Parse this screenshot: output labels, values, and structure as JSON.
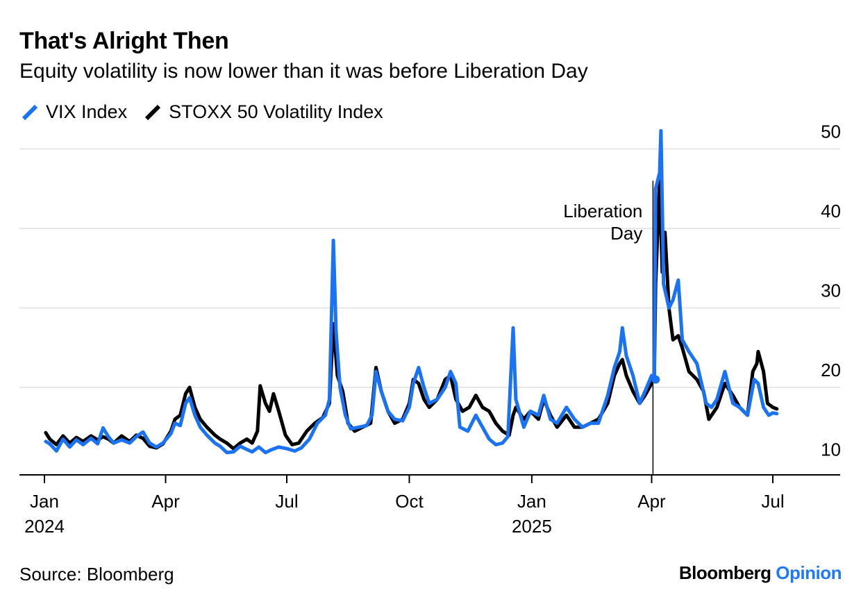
{
  "title": "That's Alright Then",
  "subtitle": "Equity volatility is now lower than it was before Liberation Day",
  "source": "Source: Bloomberg",
  "brand": {
    "name": "Bloomberg",
    "suffix": "Opinion"
  },
  "colors": {
    "vix": "#1a73f5",
    "stoxx": "#000000",
    "grid": "#e6e6e6"
  },
  "chart_data": {
    "type": "line",
    "title": "That's Alright Then",
    "subtitle": "Equity volatility is now lower than it was before Liberation Day",
    "xlabel": "",
    "ylabel": "",
    "ylim": [
      8,
      50
    ],
    "yticks": [
      10,
      20,
      30,
      40,
      50
    ],
    "xlim": [
      "2023-12-20",
      "2025-08-25"
    ],
    "xticks": [
      {
        "date": "2024-01-01",
        "label": "Jan",
        "year": "2024"
      },
      {
        "date": "2024-04-01",
        "label": "Apr",
        "year": ""
      },
      {
        "date": "2024-07-01",
        "label": "Jul",
        "year": ""
      },
      {
        "date": "2024-10-01",
        "label": "Oct",
        "year": ""
      },
      {
        "date": "2025-01-01",
        "label": "Jan",
        "year": "2025"
      },
      {
        "date": "2025-04-01",
        "label": "Apr",
        "year": ""
      },
      {
        "date": "2025-07-01",
        "label": "Jul",
        "year": ""
      }
    ],
    "grid": true,
    "legend_position": "top-left",
    "annotations": [
      {
        "date": "2025-04-02",
        "text": "Liberation Day",
        "lines": [
          "Liberation",
          "Day"
        ]
      }
    ],
    "series": [
      {
        "name": "VIX Index",
        "points": [
          [
            "2024-01-02",
            13.2
          ],
          [
            "2024-01-05",
            12.9
          ],
          [
            "2024-01-10",
            12.0
          ],
          [
            "2024-01-15",
            13.5
          ],
          [
            "2024-01-20",
            12.5
          ],
          [
            "2024-01-25",
            13.4
          ],
          [
            "2024-01-30",
            12.8
          ],
          [
            "2024-02-05",
            13.6
          ],
          [
            "2024-02-10",
            12.9
          ],
          [
            "2024-02-14",
            14.9
          ],
          [
            "2024-02-18",
            13.8
          ],
          [
            "2024-02-22",
            13.0
          ],
          [
            "2024-02-28",
            13.4
          ],
          [
            "2024-03-05",
            13.0
          ],
          [
            "2024-03-10",
            13.8
          ],
          [
            "2024-03-15",
            14.4
          ],
          [
            "2024-03-20",
            13.0
          ],
          [
            "2024-03-25",
            12.5
          ],
          [
            "2024-03-30",
            13.0
          ],
          [
            "2024-04-05",
            14.2
          ],
          [
            "2024-04-08",
            15.5
          ],
          [
            "2024-04-12",
            15.2
          ],
          [
            "2024-04-16",
            18.0
          ],
          [
            "2024-04-19",
            18.7
          ],
          [
            "2024-04-23",
            16.5
          ],
          [
            "2024-04-27",
            15.0
          ],
          [
            "2024-05-02",
            14.0
          ],
          [
            "2024-05-08",
            13.0
          ],
          [
            "2024-05-12",
            12.6
          ],
          [
            "2024-05-17",
            11.8
          ],
          [
            "2024-05-22",
            11.9
          ],
          [
            "2024-05-27",
            12.6
          ],
          [
            "2024-06-01",
            12.2
          ],
          [
            "2024-06-05",
            11.9
          ],
          [
            "2024-06-10",
            12.5
          ],
          [
            "2024-06-15",
            11.8
          ],
          [
            "2024-06-20",
            12.2
          ],
          [
            "2024-06-25",
            12.5
          ],
          [
            "2024-07-01",
            12.3
          ],
          [
            "2024-07-07",
            12.0
          ],
          [
            "2024-07-12",
            12.4
          ],
          [
            "2024-07-18",
            13.5
          ],
          [
            "2024-07-24",
            15.5
          ],
          [
            "2024-07-30",
            16.5
          ],
          [
            "2024-08-02",
            18.5
          ],
          [
            "2024-08-05",
            38.5
          ],
          [
            "2024-08-07",
            27.0
          ],
          [
            "2024-08-10",
            20.0
          ],
          [
            "2024-08-14",
            16.5
          ],
          [
            "2024-08-18",
            14.8
          ],
          [
            "2024-08-24",
            15.0
          ],
          [
            "2024-08-30",
            15.2
          ],
          [
            "2024-09-03",
            16.5
          ],
          [
            "2024-09-06",
            22.0
          ],
          [
            "2024-09-10",
            19.5
          ],
          [
            "2024-09-15",
            17.0
          ],
          [
            "2024-09-20",
            16.0
          ],
          [
            "2024-09-26",
            15.8
          ],
          [
            "2024-10-01",
            17.5
          ],
          [
            "2024-10-04",
            20.5
          ],
          [
            "2024-10-08",
            22.5
          ],
          [
            "2024-10-12",
            20.0
          ],
          [
            "2024-10-16",
            18.0
          ],
          [
            "2024-10-22",
            18.5
          ],
          [
            "2024-10-28",
            20.0
          ],
          [
            "2024-11-01",
            22.0
          ],
          [
            "2024-11-05",
            20.5
          ],
          [
            "2024-11-08",
            15.0
          ],
          [
            "2024-11-14",
            14.5
          ],
          [
            "2024-11-20",
            16.5
          ],
          [
            "2024-11-25",
            15.0
          ],
          [
            "2024-11-30",
            13.5
          ],
          [
            "2024-12-05",
            12.8
          ],
          [
            "2024-12-10",
            13.0
          ],
          [
            "2024-12-14",
            13.8
          ],
          [
            "2024-12-18",
            27.5
          ],
          [
            "2024-12-20",
            18.5
          ],
          [
            "2024-12-26",
            15.0
          ],
          [
            "2024-12-31",
            17.0
          ],
          [
            "2025-01-06",
            16.5
          ],
          [
            "2025-01-10",
            19.0
          ],
          [
            "2025-01-15",
            16.0
          ],
          [
            "2025-01-20",
            15.5
          ],
          [
            "2025-01-27",
            17.5
          ],
          [
            "2025-02-02",
            16.0
          ],
          [
            "2025-02-08",
            15.0
          ],
          [
            "2025-02-14",
            15.5
          ],
          [
            "2025-02-20",
            15.5
          ],
          [
            "2025-02-27",
            19.0
          ],
          [
            "2025-03-04",
            22.5
          ],
          [
            "2025-03-08",
            24.5
          ],
          [
            "2025-03-10",
            27.5
          ],
          [
            "2025-03-13",
            24.0
          ],
          [
            "2025-03-18",
            21.5
          ],
          [
            "2025-03-23",
            18.0
          ],
          [
            "2025-03-27",
            19.5
          ],
          [
            "2025-04-01",
            21.5
          ],
          [
            "2025-04-03",
            21.0
          ],
          [
            "2025-04-04",
            45.0
          ],
          [
            "2025-04-07",
            47.0
          ],
          [
            "2025-04-08",
            52.3
          ],
          [
            "2025-04-10",
            33.0
          ],
          [
            "2025-04-14",
            30.0
          ],
          [
            "2025-04-17",
            31.0
          ],
          [
            "2025-04-21",
            33.5
          ],
          [
            "2025-04-24",
            26.0
          ],
          [
            "2025-04-29",
            24.5
          ],
          [
            "2025-05-05",
            23.0
          ],
          [
            "2025-05-12",
            18.0
          ],
          [
            "2025-05-16",
            17.5
          ],
          [
            "2025-05-20",
            18.5
          ],
          [
            "2025-05-26",
            22.0
          ],
          [
            "2025-06-01",
            18.0
          ],
          [
            "2025-06-06",
            17.5
          ],
          [
            "2025-06-12",
            16.5
          ],
          [
            "2025-06-17",
            21.0
          ],
          [
            "2025-06-20",
            20.5
          ],
          [
            "2025-06-24",
            17.5
          ],
          [
            "2025-06-28",
            16.5
          ],
          [
            "2025-07-01",
            16.8
          ],
          [
            "2025-07-04",
            16.7
          ]
        ]
      },
      {
        "name": "STOXX 50 Volatility Index",
        "points": [
          [
            "2024-01-02",
            14.3
          ],
          [
            "2024-01-05",
            13.5
          ],
          [
            "2024-01-10",
            12.8
          ],
          [
            "2024-01-15",
            13.9
          ],
          [
            "2024-01-20",
            13.0
          ],
          [
            "2024-01-25",
            13.7
          ],
          [
            "2024-01-30",
            13.2
          ],
          [
            "2024-02-05",
            13.9
          ],
          [
            "2024-02-10",
            13.4
          ],
          [
            "2024-02-14",
            13.8
          ],
          [
            "2024-02-18",
            13.5
          ],
          [
            "2024-02-22",
            13.0
          ],
          [
            "2024-02-28",
            13.9
          ],
          [
            "2024-03-05",
            13.2
          ],
          [
            "2024-03-10",
            14.0
          ],
          [
            "2024-03-15",
            13.6
          ],
          [
            "2024-03-20",
            12.6
          ],
          [
            "2024-03-25",
            12.4
          ],
          [
            "2024-03-30",
            12.9
          ],
          [
            "2024-04-05",
            14.5
          ],
          [
            "2024-04-08",
            16.0
          ],
          [
            "2024-04-12",
            16.5
          ],
          [
            "2024-04-16",
            19.2
          ],
          [
            "2024-04-19",
            20.0
          ],
          [
            "2024-04-23",
            17.5
          ],
          [
            "2024-04-27",
            16.0
          ],
          [
            "2024-05-02",
            15.0
          ],
          [
            "2024-05-08",
            14.0
          ],
          [
            "2024-05-12",
            13.5
          ],
          [
            "2024-05-17",
            13.0
          ],
          [
            "2024-05-22",
            12.3
          ],
          [
            "2024-05-27",
            13.0
          ],
          [
            "2024-06-01",
            13.5
          ],
          [
            "2024-06-05",
            13.0
          ],
          [
            "2024-06-09",
            14.5
          ],
          [
            "2024-06-11",
            20.2
          ],
          [
            "2024-06-15",
            18.0
          ],
          [
            "2024-06-18",
            17.0
          ],
          [
            "2024-06-21",
            19.2
          ],
          [
            "2024-06-25",
            17.0
          ],
          [
            "2024-06-30",
            14.0
          ],
          [
            "2024-07-05",
            12.8
          ],
          [
            "2024-07-10",
            13.0
          ],
          [
            "2024-07-16",
            14.5
          ],
          [
            "2024-07-22",
            15.5
          ],
          [
            "2024-07-28",
            16.2
          ],
          [
            "2024-08-02",
            18.0
          ],
          [
            "2024-08-05",
            28.0
          ],
          [
            "2024-08-08",
            21.5
          ],
          [
            "2024-08-12",
            19.5
          ],
          [
            "2024-08-16",
            15.5
          ],
          [
            "2024-08-21",
            14.5
          ],
          [
            "2024-08-27",
            15.0
          ],
          [
            "2024-09-02",
            15.5
          ],
          [
            "2024-09-06",
            22.5
          ],
          [
            "2024-09-10",
            19.5
          ],
          [
            "2024-09-15",
            17.0
          ],
          [
            "2024-09-20",
            15.5
          ],
          [
            "2024-09-26",
            16.0
          ],
          [
            "2024-10-01",
            18.0
          ],
          [
            "2024-10-04",
            21.0
          ],
          [
            "2024-10-08",
            20.5
          ],
          [
            "2024-10-12",
            18.5
          ],
          [
            "2024-10-16",
            17.5
          ],
          [
            "2024-10-22",
            18.5
          ],
          [
            "2024-10-28",
            21.0
          ],
          [
            "2024-11-01",
            21.5
          ],
          [
            "2024-11-05",
            18.5
          ],
          [
            "2024-11-10",
            17.0
          ],
          [
            "2024-11-15",
            17.5
          ],
          [
            "2024-11-20",
            19.0
          ],
          [
            "2024-11-25",
            17.5
          ],
          [
            "2024-11-30",
            17.0
          ],
          [
            "2024-12-05",
            15.5
          ],
          [
            "2024-12-10",
            14.5
          ],
          [
            "2024-12-15",
            14.0
          ],
          [
            "2024-12-18",
            16.5
          ],
          [
            "2024-12-20",
            17.5
          ],
          [
            "2024-12-26",
            16.0
          ],
          [
            "2024-12-31",
            17.0
          ],
          [
            "2025-01-06",
            16.0
          ],
          [
            "2025-01-10",
            18.5
          ],
          [
            "2025-01-15",
            16.5
          ],
          [
            "2025-01-20",
            15.0
          ],
          [
            "2025-01-27",
            16.5
          ],
          [
            "2025-02-02",
            15.0
          ],
          [
            "2025-02-08",
            15.0
          ],
          [
            "2025-02-14",
            15.5
          ],
          [
            "2025-02-20",
            16.0
          ],
          [
            "2025-02-27",
            18.0
          ],
          [
            "2025-03-04",
            21.5
          ],
          [
            "2025-03-08",
            23.0
          ],
          [
            "2025-03-10",
            23.5
          ],
          [
            "2025-03-13",
            21.5
          ],
          [
            "2025-03-18",
            19.5
          ],
          [
            "2025-03-23",
            18.0
          ],
          [
            "2025-03-27",
            19.0
          ],
          [
            "2025-04-01",
            20.5
          ],
          [
            "2025-04-03",
            21.5
          ],
          [
            "2025-04-04",
            33.0
          ],
          [
            "2025-04-07",
            46.0
          ],
          [
            "2025-04-08",
            40.0
          ],
          [
            "2025-04-09",
            34.5
          ],
          [
            "2025-04-11",
            39.5
          ],
          [
            "2025-04-14",
            30.0
          ],
          [
            "2025-04-17",
            26.0
          ],
          [
            "2025-04-21",
            26.5
          ],
          [
            "2025-04-24",
            25.0
          ],
          [
            "2025-04-29",
            22.0
          ],
          [
            "2025-05-05",
            21.0
          ],
          [
            "2025-05-10",
            19.5
          ],
          [
            "2025-05-14",
            16.0
          ],
          [
            "2025-05-20",
            17.5
          ],
          [
            "2025-05-26",
            20.5
          ],
          [
            "2025-06-01",
            19.0
          ],
          [
            "2025-06-06",
            17.5
          ],
          [
            "2025-06-12",
            16.5
          ],
          [
            "2025-06-16",
            22.0
          ],
          [
            "2025-06-19",
            23.0
          ],
          [
            "2025-06-20",
            24.5
          ],
          [
            "2025-06-24",
            22.0
          ],
          [
            "2025-06-27",
            18.0
          ],
          [
            "2025-07-01",
            17.5
          ],
          [
            "2025-07-04",
            17.3
          ]
        ]
      }
    ]
  }
}
